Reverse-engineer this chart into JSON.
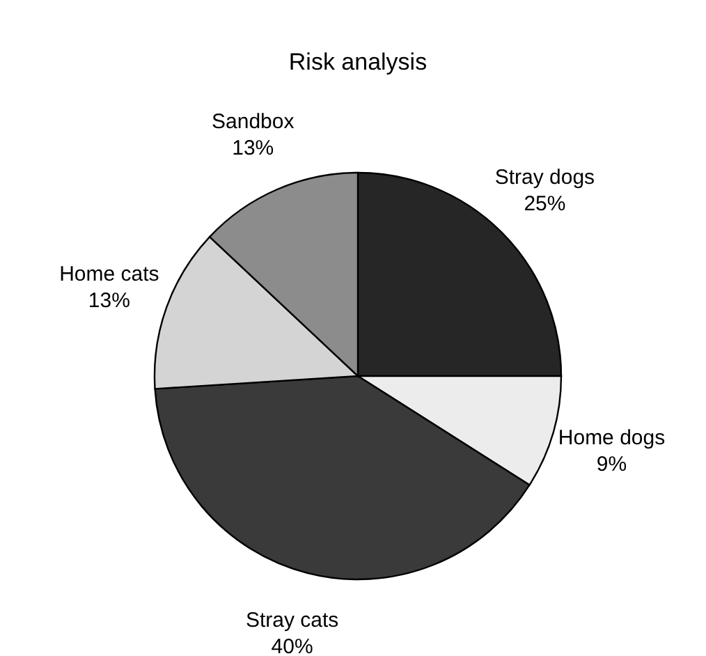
{
  "chart_data": {
    "type": "pie",
    "title": "Risk analysis",
    "categories": [
      "Stray dogs",
      "Home dogs",
      "Stray cats",
      "Home cats",
      "Sandbox"
    ],
    "values": [
      25,
      9,
      40,
      13,
      13
    ],
    "value_labels": [
      "25%",
      "9%",
      "40%",
      "13%",
      "13%"
    ],
    "colors": [
      "#262626",
      "#ececec",
      "#3a3a3a",
      "#d4d4d4",
      "#8c8c8c"
    ]
  }
}
